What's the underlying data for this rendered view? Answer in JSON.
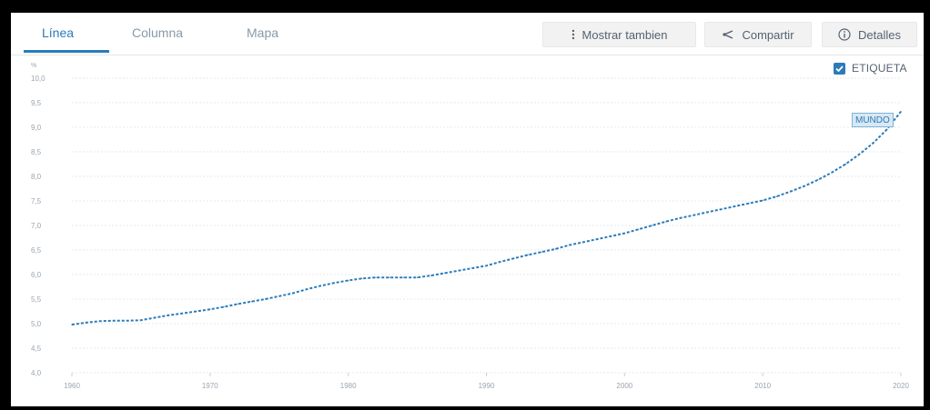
{
  "tabs": [
    {
      "label": "Línea",
      "active": true
    },
    {
      "label": "Columna",
      "active": false
    },
    {
      "label": "Mapa",
      "active": false
    }
  ],
  "toolbar": {
    "show_also_label": "Mostrar tambien",
    "share_label": "Compartir",
    "details_label": "Detalles"
  },
  "legend": {
    "label": "ETIQUETA",
    "checked": true
  },
  "colors": {
    "accent": "#2b7bb9",
    "line": "#2b7bb9",
    "grid": "#e4e8ec",
    "tab_inactive": "#8a99a8"
  },
  "chart_data": {
    "type": "line",
    "title": "",
    "ylabel": "%",
    "xlabel": "",
    "ylim": [
      4.0,
      10.0
    ],
    "xlim": [
      1960,
      2020
    ],
    "y_ticks": [
      "4,0",
      "4,5",
      "5,0",
      "5,5",
      "6,0",
      "6,5",
      "7,0",
      "7,5",
      "8,0",
      "8,5",
      "9,0",
      "9,5",
      "10,0"
    ],
    "x_ticks": [
      "1960",
      "1970",
      "1980",
      "1990",
      "2000",
      "2010",
      "2020"
    ],
    "grid": true,
    "series": [
      {
        "name": "MUNDO",
        "x": [
          1960,
          1961,
          1962,
          1963,
          1964,
          1965,
          1966,
          1967,
          1968,
          1969,
          1970,
          1971,
          1972,
          1973,
          1974,
          1975,
          1976,
          1977,
          1978,
          1979,
          1980,
          1981,
          1982,
          1983,
          1984,
          1985,
          1986,
          1987,
          1988,
          1989,
          1990,
          1991,
          1992,
          1993,
          1994,
          1995,
          1996,
          1997,
          1998,
          1999,
          2000,
          2001,
          2002,
          2003,
          2004,
          2005,
          2006,
          2007,
          2008,
          2009,
          2010,
          2011,
          2012,
          2013,
          2014,
          2015,
          2016,
          2017,
          2018,
          2019,
          2020
        ],
        "values": [
          4.98,
          5.02,
          5.05,
          5.06,
          5.06,
          5.07,
          5.12,
          5.17,
          5.21,
          5.25,
          5.29,
          5.34,
          5.4,
          5.45,
          5.5,
          5.56,
          5.62,
          5.7,
          5.77,
          5.83,
          5.88,
          5.92,
          5.94,
          5.94,
          5.94,
          5.94,
          5.98,
          6.03,
          6.08,
          6.13,
          6.18,
          6.26,
          6.33,
          6.4,
          6.46,
          6.52,
          6.6,
          6.66,
          6.72,
          6.78,
          6.84,
          6.92,
          7.0,
          7.08,
          7.15,
          7.21,
          7.27,
          7.33,
          7.39,
          7.45,
          7.51,
          7.59,
          7.69,
          7.8,
          7.93,
          8.08,
          8.25,
          8.45,
          8.68,
          8.96,
          9.32
        ]
      }
    ]
  }
}
